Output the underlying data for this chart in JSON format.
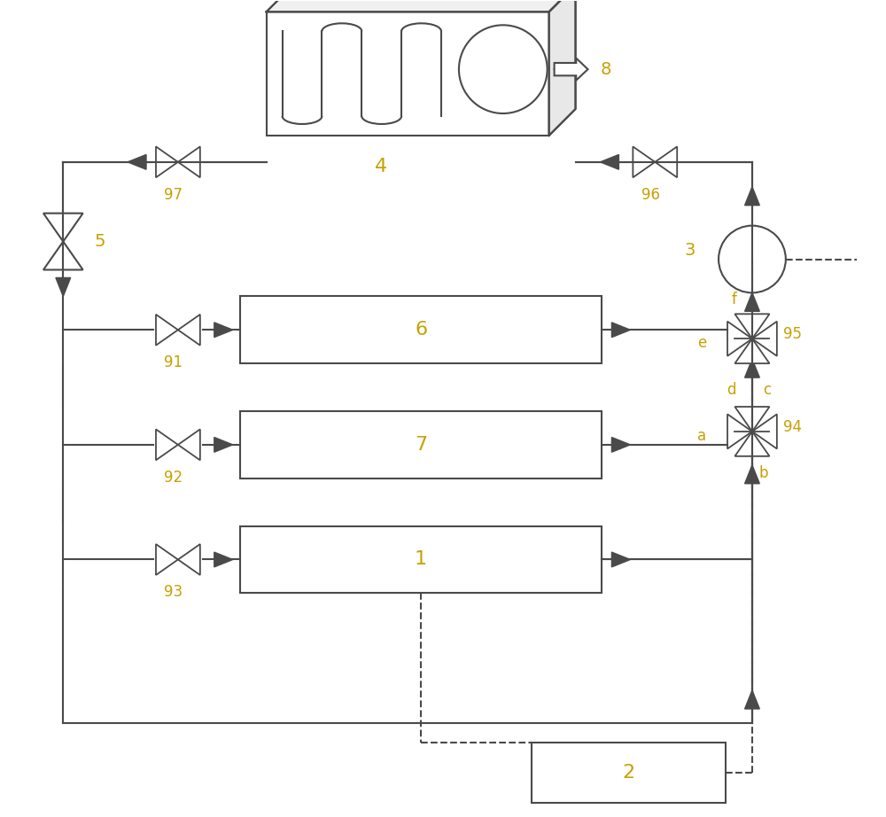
{
  "bg_color": "#ffffff",
  "line_color": "#4a4a4a",
  "label_color": "#c8a000",
  "fig_width": 10.0,
  "fig_height": 9.22,
  "components": {
    "box4_label": "4",
    "box6_label": "6",
    "box7_label": "7",
    "box1_label": "1",
    "box2_label": "2",
    "box3_label": "3",
    "label5": "5",
    "label8": "8",
    "label91": "91",
    "label92": "92",
    "label93": "93",
    "label94": "94",
    "label95": "95",
    "label96": "96",
    "label97": "97",
    "label_a": "a",
    "label_b": "b",
    "label_c": "c",
    "label_d": "d",
    "label_e": "e",
    "label_f": "f"
  }
}
